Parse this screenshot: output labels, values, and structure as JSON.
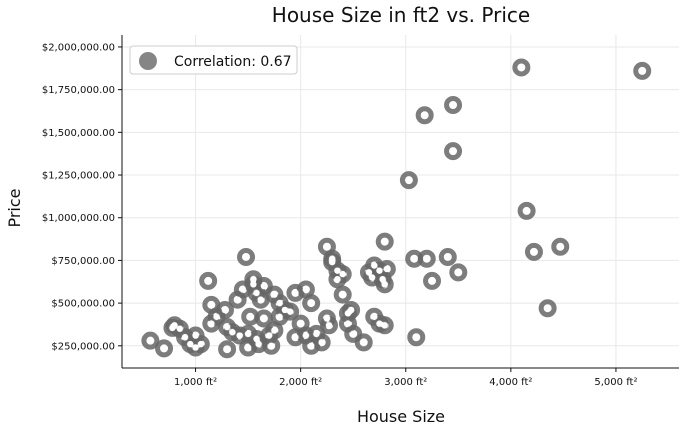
{
  "chart_data": {
    "type": "scatter",
    "title": "House Size in ft2 vs. Price",
    "xlabel": "House Size",
    "ylabel": "Price",
    "xlim": [
      300,
      5600
    ],
    "ylim": [
      120000,
      2070000
    ],
    "x_ticks": [
      1000,
      2000,
      3000,
      4000,
      5000
    ],
    "x_tick_labels": [
      "1,000 ft²",
      "2,000 ft²",
      "3,000 ft²",
      "4,000 ft²",
      "5,000 ft²"
    ],
    "y_ticks": [
      250000,
      500000,
      750000,
      1000000,
      1250000,
      1500000,
      1750000,
      2000000
    ],
    "y_tick_labels": [
      "$250,000.00",
      "$500,000.00",
      "$750,000.00",
      "$1,000,000.00",
      "$1,250,000.00",
      "$1,500,000.00",
      "$1,750,000.00",
      "$2,000,000.00"
    ],
    "grid": true,
    "legend": {
      "label": "Correlation: 0.67",
      "placement": "top-left"
    },
    "marker_color": "#666666",
    "points": [
      [
        570,
        280000
      ],
      [
        700,
        235000
      ],
      [
        780,
        355000
      ],
      [
        800,
        370000
      ],
      [
        850,
        350000
      ],
      [
        900,
        300000
      ],
      [
        950,
        260000
      ],
      [
        1000,
        240000
      ],
      [
        1000,
        310000
      ],
      [
        1050,
        260000
      ],
      [
        1120,
        630000
      ],
      [
        1150,
        490000
      ],
      [
        1150,
        380000
      ],
      [
        1200,
        420000
      ],
      [
        1280,
        460000
      ],
      [
        1300,
        230000
      ],
      [
        1300,
        360000
      ],
      [
        1350,
        330000
      ],
      [
        1400,
        520000
      ],
      [
        1420,
        310000
      ],
      [
        1450,
        580000
      ],
      [
        1480,
        770000
      ],
      [
        1500,
        320000
      ],
      [
        1500,
        240000
      ],
      [
        1520,
        420000
      ],
      [
        1550,
        610000
      ],
      [
        1550,
        640000
      ],
      [
        1580,
        560000
      ],
      [
        1580,
        290000
      ],
      [
        1600,
        260000
      ],
      [
        1620,
        520000
      ],
      [
        1650,
        600000
      ],
      [
        1650,
        410000
      ],
      [
        1700,
        310000
      ],
      [
        1720,
        250000
      ],
      [
        1750,
        340000
      ],
      [
        1750,
        550000
      ],
      [
        1800,
        500000
      ],
      [
        1800,
        420000
      ],
      [
        1850,
        460000
      ],
      [
        1900,
        450000
      ],
      [
        1950,
        300000
      ],
      [
        1950,
        560000
      ],
      [
        2000,
        380000
      ],
      [
        2050,
        580000
      ],
      [
        2050,
        310000
      ],
      [
        2100,
        250000
      ],
      [
        2100,
        500000
      ],
      [
        2150,
        320000
      ],
      [
        2200,
        270000
      ],
      [
        2250,
        830000
      ],
      [
        2250,
        410000
      ],
      [
        2270,
        370000
      ],
      [
        2300,
        740000
      ],
      [
        2300,
        760000
      ],
      [
        2350,
        690000
      ],
      [
        2350,
        640000
      ],
      [
        2400,
        550000
      ],
      [
        2400,
        670000
      ],
      [
        2450,
        440000
      ],
      [
        2450,
        380000
      ],
      [
        2480,
        460000
      ],
      [
        2500,
        320000
      ],
      [
        2600,
        270000
      ],
      [
        2650,
        680000
      ],
      [
        2680,
        650000
      ],
      [
        2700,
        720000
      ],
      [
        2700,
        420000
      ],
      [
        2750,
        690000
      ],
      [
        2750,
        380000
      ],
      [
        2780,
        640000
      ],
      [
        2800,
        610000
      ],
      [
        2800,
        370000
      ],
      [
        2800,
        860000
      ],
      [
        2820,
        700000
      ],
      [
        3030,
        1220000
      ],
      [
        3080,
        760000
      ],
      [
        3100,
        300000
      ],
      [
        3180,
        1600000
      ],
      [
        3200,
        760000
      ],
      [
        3250,
        630000
      ],
      [
        3400,
        770000
      ],
      [
        3450,
        1660000
      ],
      [
        3450,
        1390000
      ],
      [
        3500,
        680000
      ],
      [
        4100,
        1880000
      ],
      [
        4150,
        1040000
      ],
      [
        4220,
        800000
      ],
      [
        4350,
        470000
      ],
      [
        4470,
        830000
      ],
      [
        5250,
        1860000
      ]
    ]
  }
}
